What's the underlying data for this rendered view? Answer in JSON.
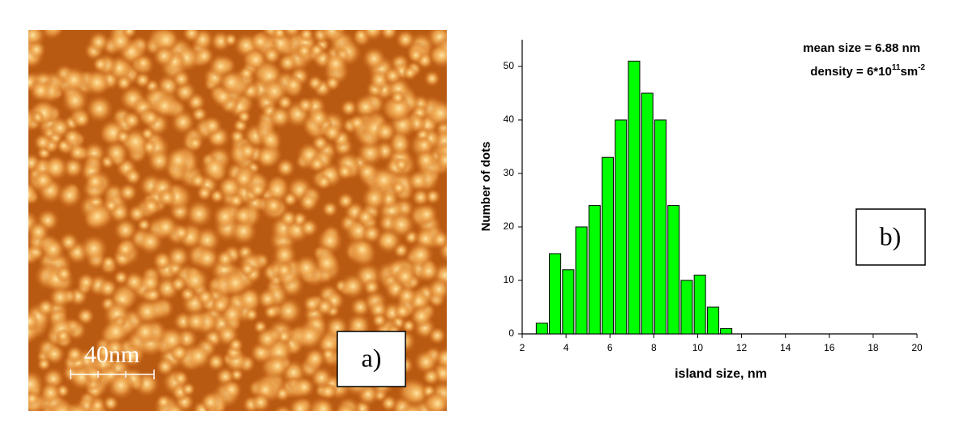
{
  "image_panel": {
    "scale_label": "40nm",
    "panel_label": "a)"
  },
  "chart_data": {
    "type": "bar",
    "x": [
      2.9,
      3.5,
      4.1,
      4.7,
      5.3,
      5.9,
      6.5,
      7.1,
      7.7,
      8.3,
      8.9,
      9.5,
      10.1,
      10.7,
      11.3
    ],
    "values": [
      2,
      15,
      12,
      20,
      24,
      33,
      40,
      51,
      45,
      40,
      24,
      10,
      11,
      5,
      1
    ],
    "color": "#00ff00",
    "xlim": [
      2,
      20
    ],
    "xticks": [
      2,
      4,
      6,
      8,
      10,
      12,
      14,
      16,
      18,
      20
    ],
    "ylim": [
      0,
      55
    ],
    "yticks": [
      0,
      10,
      20,
      30,
      40,
      50
    ],
    "x_label": "island size, nm",
    "y_label": "Number of dots",
    "annotation_mean": "mean size = 6.88 nm",
    "annotation_density": [
      "density = 6*10",
      "11",
      "sm",
      "-2"
    ],
    "panel_label": "b)"
  }
}
